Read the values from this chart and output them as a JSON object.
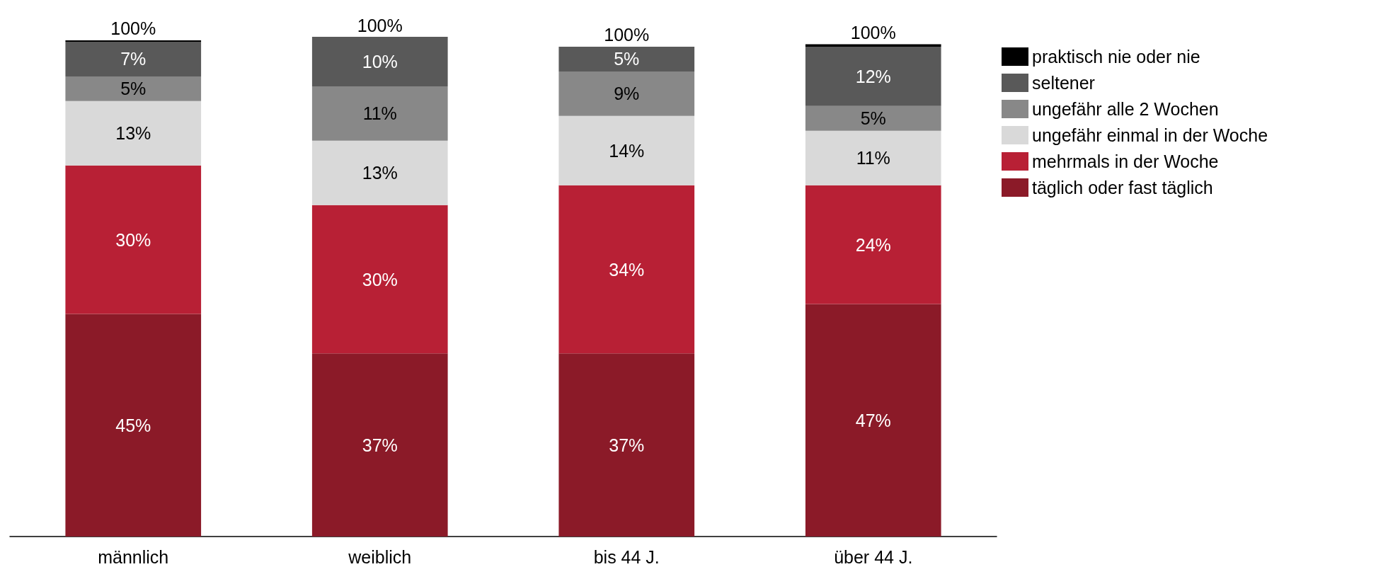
{
  "chart_data": {
    "type": "bar",
    "stacked": true,
    "categories": [
      "männlich",
      "weiblich",
      "bis 44 J.",
      "über 44 J."
    ],
    "series": [
      {
        "name": "täglich oder fast täglich",
        "color": "#8b1a28",
        "values": [
          45,
          37,
          37,
          47
        ],
        "value_labels": [
          "45%",
          "37%",
          "37%",
          "47%"
        ]
      },
      {
        "name": "mehrmals in der Woche",
        "color": "#b82035",
        "values": [
          30,
          30,
          34,
          24
        ],
        "value_labels": [
          "30%",
          "30%",
          "34%",
          "24%"
        ]
      },
      {
        "name": "ungefähr einmal in der Woche",
        "color": "#d9d9d9",
        "values": [
          13,
          13,
          14,
          11
        ],
        "value_labels": [
          "13%",
          "13%",
          "14%",
          "11%"
        ]
      },
      {
        "name": "ungefähr alle 2 Wochen",
        "color": "#888888",
        "values": [
          5,
          11,
          9,
          5
        ],
        "value_labels": [
          "5%",
          "11%",
          "9%",
          "5%"
        ]
      },
      {
        "name": "seltener",
        "color": "#595959",
        "values": [
          7,
          10,
          5,
          12
        ],
        "value_labels": [
          "7%",
          "10%",
          "5%",
          "12%"
        ]
      },
      {
        "name": "praktisch nie oder nie",
        "color": "#000000",
        "values": [
          0.3,
          0,
          0,
          0.5
        ]
      }
    ],
    "totals": [
      "100%",
      "100%",
      "100%",
      "100%"
    ],
    "legend": "right"
  }
}
